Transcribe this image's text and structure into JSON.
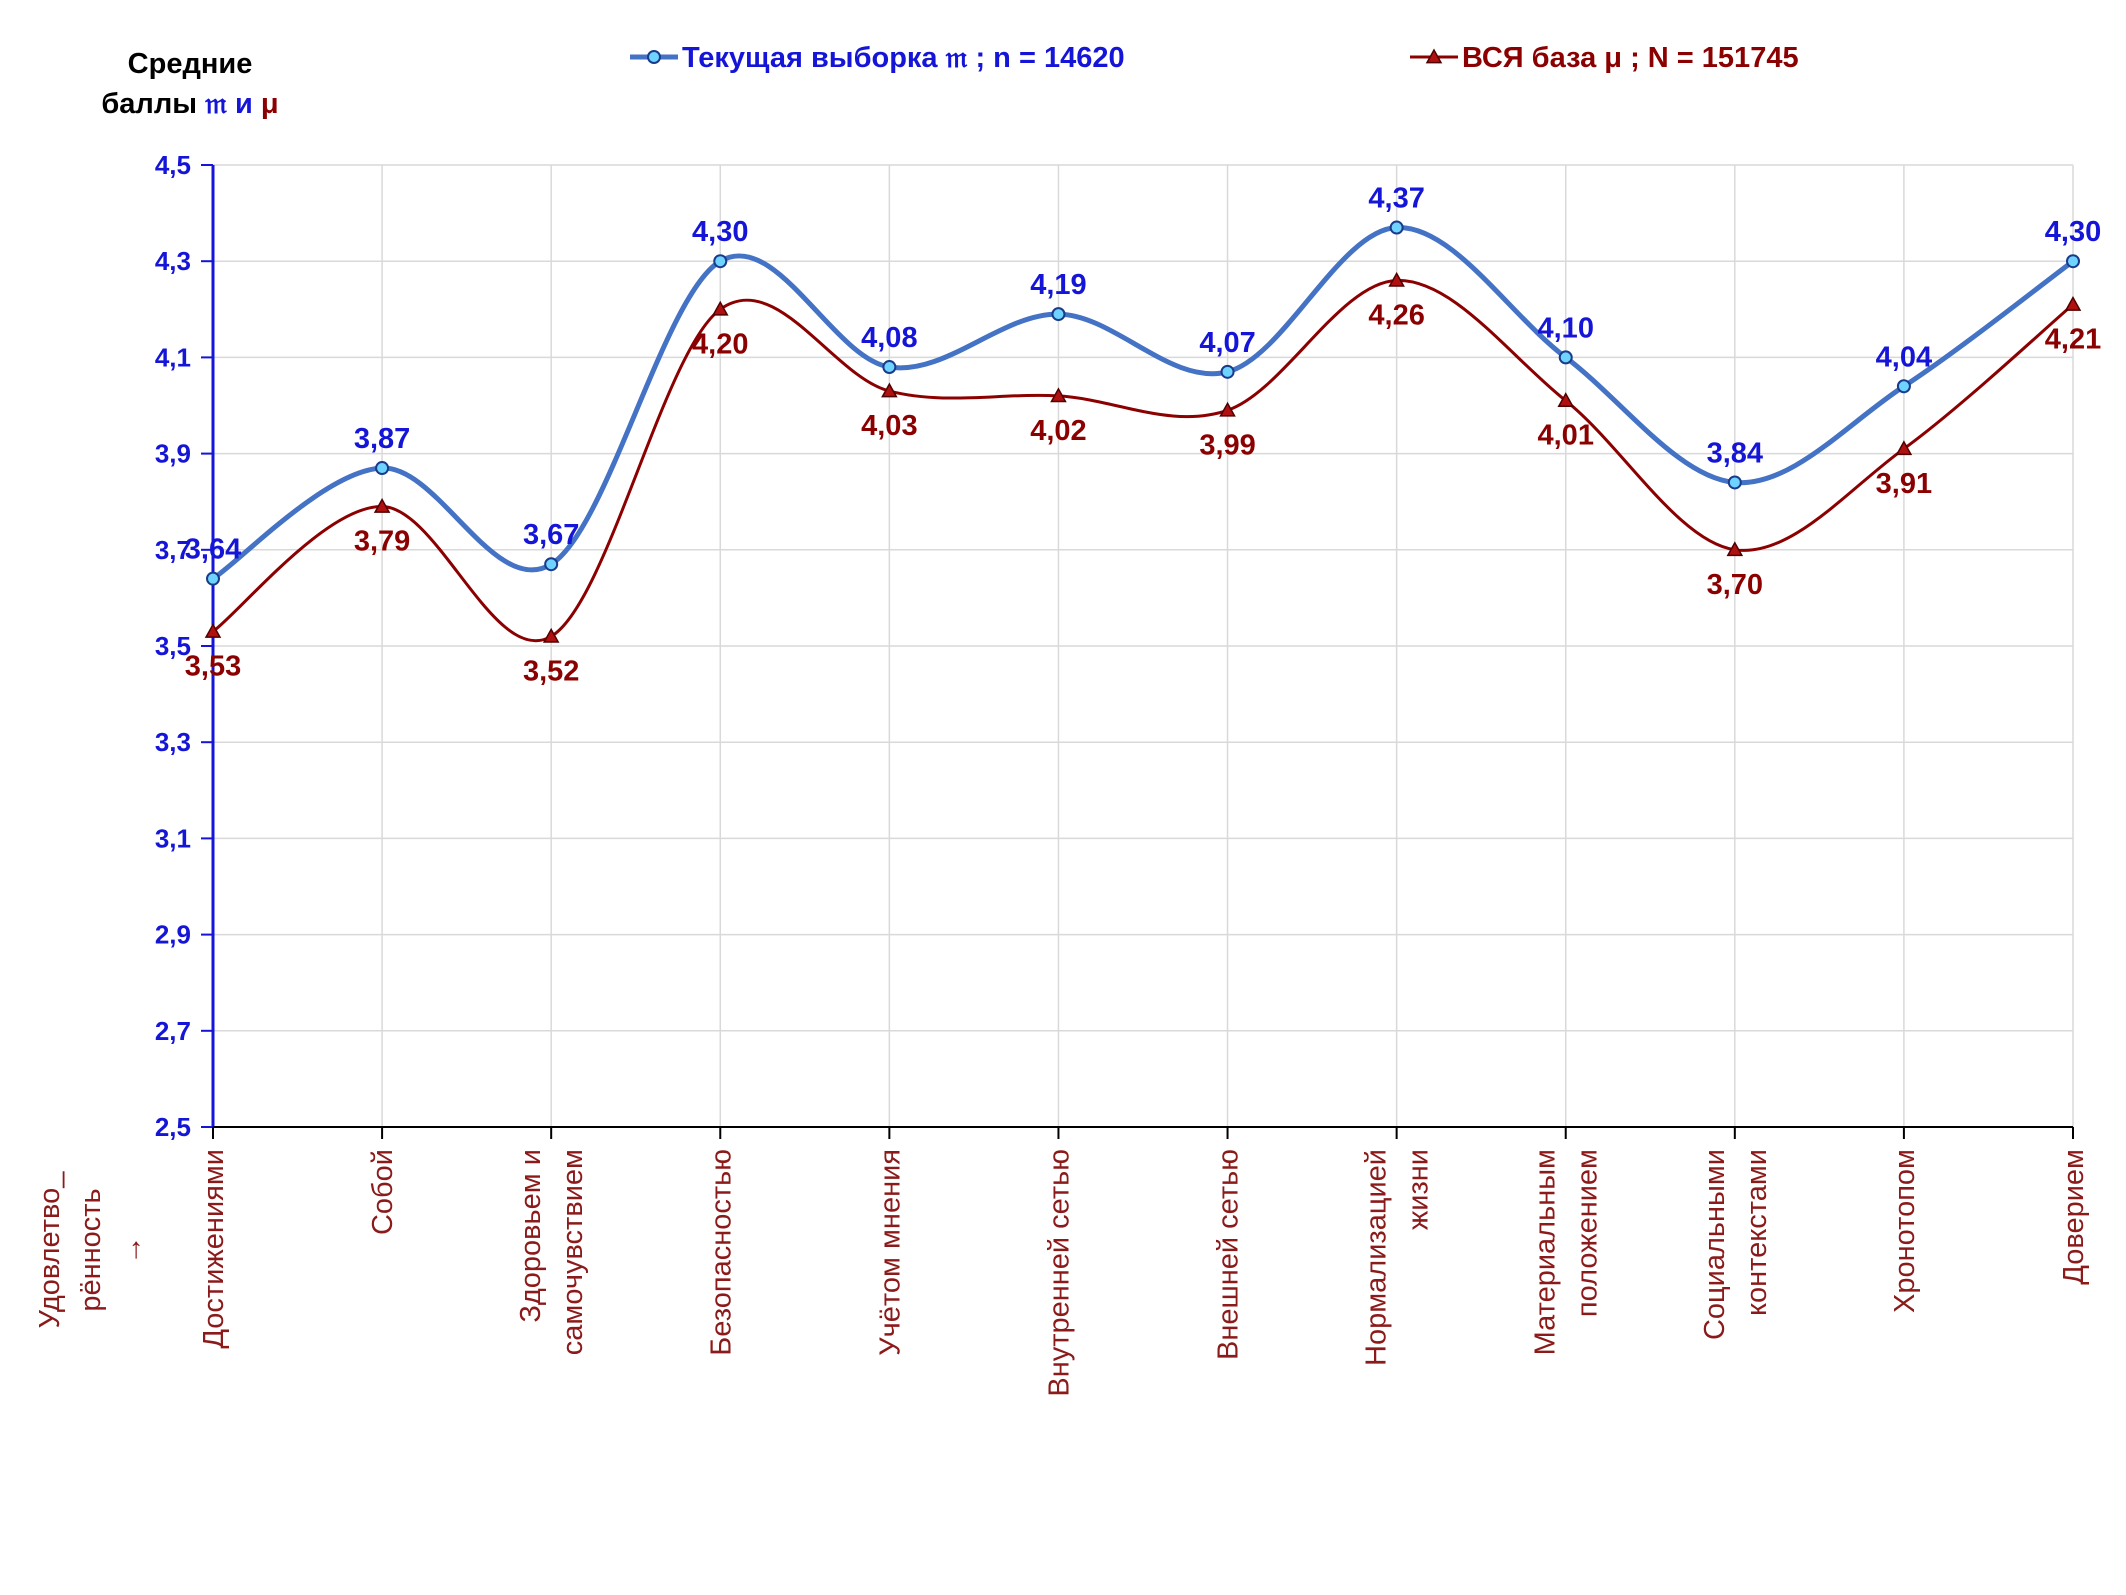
{
  "chart_data": {
    "type": "line",
    "y_title_line1": "Средние",
    "y_title_line2": "баллы",
    "y_title_sym_a": "𝔪",
    "y_title_and": "и",
    "y_title_sym_b": "μ",
    "side_label_line1": "Удовлетво_",
    "side_label_line2": "рённость",
    "side_label_arrow": "→",
    "ylim": [
      2.5,
      4.5
    ],
    "yticks": [
      "2,5",
      "2,7",
      "2,9",
      "3,1",
      "3,3",
      "3,5",
      "3,7",
      "3,9",
      "4,1",
      "4,3",
      "4,5"
    ],
    "grid": true,
    "legend_position": "top",
    "categories": [
      [
        "Достижениями"
      ],
      [
        "Собой"
      ],
      [
        "Здоровьем и",
        "самочувствием"
      ],
      [
        "Безопасностью"
      ],
      [
        "Учётом мнения"
      ],
      [
        "Внутренней сетью"
      ],
      [
        "Внешней сетью"
      ],
      [
        "Нормализацией",
        "жизни"
      ],
      [
        "Материальным",
        "положением"
      ],
      [
        "Социальными",
        "контекстами"
      ],
      [
        "Хронотопом"
      ],
      [
        "Доверием"
      ]
    ],
    "series": [
      {
        "name": "Текущая выборка 𝔪 ; n = 14620",
        "color": "#4472c4",
        "label_color": "#1515d8",
        "marker": "circle",
        "values": [
          3.64,
          3.87,
          3.67,
          4.3,
          4.08,
          4.19,
          4.07,
          4.37,
          4.1,
          3.84,
          4.04,
          4.3
        ],
        "labels": [
          "3,64",
          "3,87",
          "3,67",
          "4,30",
          "4,08",
          "4,19",
          "4,07",
          "4,37",
          "4,10",
          "3,84",
          "4,04",
          "4,30"
        ]
      },
      {
        "name": "ВСЯ база μ ; N = 151745",
        "color": "#8b0000",
        "label_color": "#8b0000",
        "marker": "triangle",
        "values": [
          3.53,
          3.79,
          3.52,
          4.2,
          4.03,
          4.02,
          3.99,
          4.26,
          4.01,
          3.7,
          3.91,
          4.21
        ],
        "labels": [
          "3,53",
          "3,79",
          "3,52",
          "4,20",
          "4,03",
          "4,02",
          "3,99",
          "4,26",
          "4,01",
          "3,70",
          "3,91",
          "4,21"
        ]
      }
    ]
  }
}
